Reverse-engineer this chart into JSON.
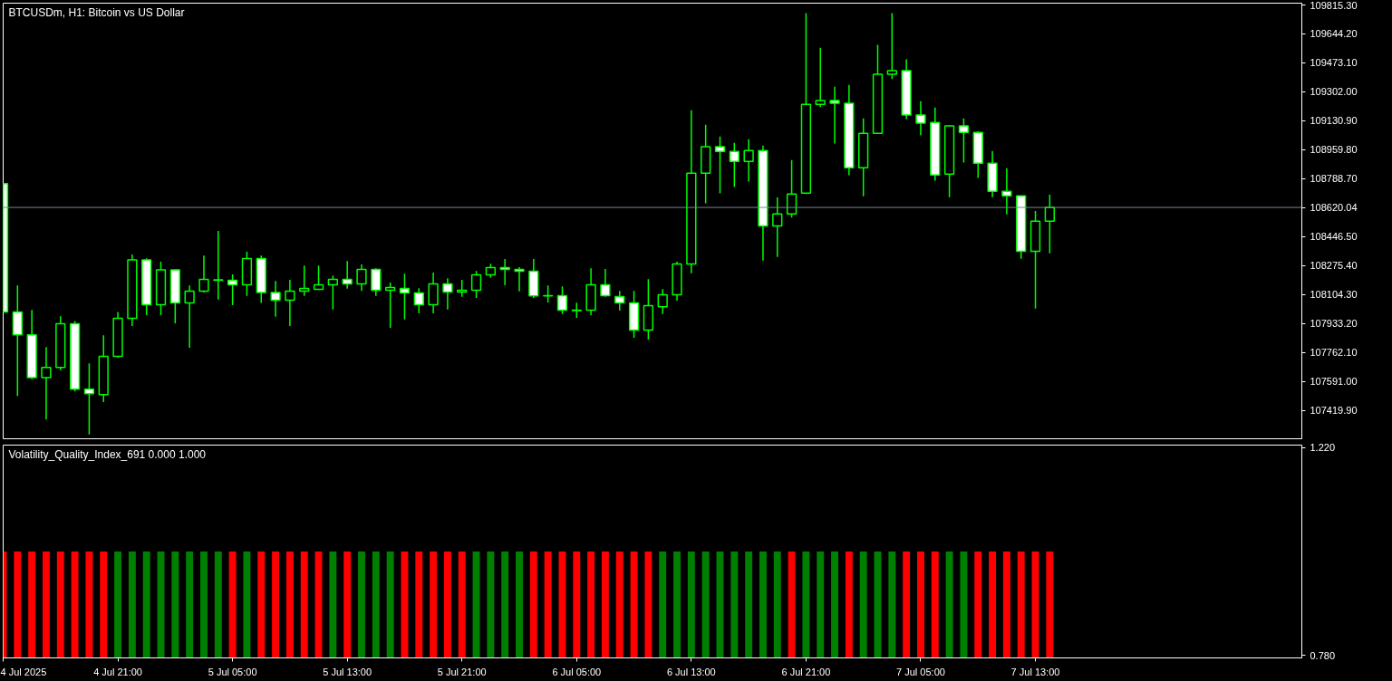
{
  "chart_data": [
    {
      "type": "candlestick",
      "title": "BTCUSDm, H1:  Bitcoin vs US Dollar",
      "x": [
        "2025-07-04T13:00",
        "2025-07-04T14:00",
        "2025-07-04T15:00",
        "2025-07-04T16:00",
        "2025-07-04T17:00",
        "2025-07-04T18:00",
        "2025-07-04T19:00",
        "2025-07-04T20:00",
        "2025-07-04T21:00",
        "2025-07-04T22:00",
        "2025-07-04T23:00",
        "2025-07-05T00:00",
        "2025-07-05T01:00",
        "2025-07-05T02:00",
        "2025-07-05T03:00",
        "2025-07-05T04:00",
        "2025-07-05T05:00",
        "2025-07-05T06:00",
        "2025-07-05T07:00",
        "2025-07-05T08:00",
        "2025-07-05T09:00",
        "2025-07-05T10:00",
        "2025-07-05T11:00",
        "2025-07-05T12:00",
        "2025-07-05T13:00",
        "2025-07-05T14:00",
        "2025-07-05T15:00",
        "2025-07-05T16:00",
        "2025-07-05T17:00",
        "2025-07-05T18:00",
        "2025-07-05T19:00",
        "2025-07-05T20:00",
        "2025-07-05T21:00",
        "2025-07-05T22:00",
        "2025-07-05T23:00",
        "2025-07-06T00:00",
        "2025-07-06T01:00",
        "2025-07-06T02:00",
        "2025-07-06T03:00",
        "2025-07-06T04:00",
        "2025-07-06T05:00",
        "2025-07-06T06:00",
        "2025-07-06T07:00",
        "2025-07-06T08:00",
        "2025-07-06T09:00",
        "2025-07-06T10:00",
        "2025-07-06T11:00",
        "2025-07-06T12:00",
        "2025-07-06T13:00",
        "2025-07-06T14:00",
        "2025-07-06T15:00",
        "2025-07-06T16:00",
        "2025-07-06T17:00",
        "2025-07-06T18:00",
        "2025-07-06T19:00",
        "2025-07-06T20:00",
        "2025-07-06T21:00",
        "2025-07-06T22:00",
        "2025-07-06T23:00",
        "2025-07-07T00:00",
        "2025-07-07T01:00",
        "2025-07-07T02:00",
        "2025-07-07T03:00",
        "2025-07-07T04:00",
        "2025-07-07T05:00",
        "2025-07-07T06:00",
        "2025-07-07T07:00",
        "2025-07-07T08:00",
        "2025-07-07T09:00",
        "2025-07-07T10:00",
        "2025-07-07T11:00",
        "2025-07-07T12:00",
        "2025-07-07T13:00",
        "2025-07-07T14:00"
      ],
      "ohlc": [
        [
          108761,
          108761,
          108002,
          108002
        ],
        [
          108002,
          108159,
          107507,
          107868
        ],
        [
          107868,
          108015,
          107606,
          107615
        ],
        [
          107615,
          107795,
          107368,
          107675
        ],
        [
          107675,
          107977,
          107659,
          107933
        ],
        [
          107933,
          107949,
          107534,
          107547
        ],
        [
          107547,
          107699,
          107279,
          107520
        ],
        [
          107515,
          107865,
          107470,
          107740
        ],
        [
          107740,
          108002,
          107734,
          107965
        ],
        [
          107965,
          108342,
          107920,
          108310
        ],
        [
          108310,
          108320,
          107984,
          108045
        ],
        [
          108045,
          108299,
          107984,
          108251
        ],
        [
          108251,
          108251,
          107936,
          108056
        ],
        [
          108056,
          108159,
          107792,
          108126
        ],
        [
          108126,
          108336,
          108118,
          108195
        ],
        [
          108193,
          108481,
          108076,
          108190
        ],
        [
          108190,
          108224,
          108043,
          108163
        ],
        [
          108163,
          108358,
          108097,
          108318
        ],
        [
          108318,
          108336,
          108056,
          108118
        ],
        [
          108118,
          108186,
          107974,
          108072
        ],
        [
          108072,
          108192,
          107920,
          108126
        ],
        [
          108126,
          108277,
          108097,
          108142
        ],
        [
          108136,
          108277,
          108136,
          108163
        ],
        [
          108163,
          108218,
          108017,
          108195
        ],
        [
          108195,
          108304,
          108140,
          108168
        ],
        [
          108168,
          108283,
          108127,
          108254
        ],
        [
          108254,
          108261,
          108097,
          108131
        ],
        [
          108131,
          108176,
          107909,
          108147
        ],
        [
          108142,
          108229,
          107958,
          108115
        ],
        [
          108115,
          108143,
          107995,
          108045
        ],
        [
          108045,
          108235,
          107995,
          108168
        ],
        [
          108168,
          108202,
          108017,
          108120
        ],
        [
          108120,
          108192,
          108092,
          108131
        ],
        [
          108131,
          108245,
          108086,
          108222
        ],
        [
          108222,
          108288,
          108204,
          108265
        ],
        [
          108265,
          108315,
          108161,
          108254
        ],
        [
          108254,
          108267,
          108124,
          108243
        ],
        [
          108243,
          108315,
          108086,
          108097
        ],
        [
          108099,
          108159,
          108059,
          108097
        ],
        [
          108099,
          108154,
          107990,
          108013
        ],
        [
          108013,
          108058,
          107968,
          108011
        ],
        [
          108013,
          108261,
          107984,
          108163
        ],
        [
          108163,
          108256,
          108092,
          108099
        ],
        [
          108093,
          108127,
          108011,
          108056
        ],
        [
          108056,
          108127,
          107850,
          107895
        ],
        [
          107895,
          108197,
          107840,
          108040
        ],
        [
          108034,
          108138,
          107990,
          108104
        ],
        [
          108104,
          108299,
          108070,
          108286
        ],
        [
          108286,
          109194,
          108231,
          108822
        ],
        [
          108822,
          109108,
          108644,
          108978
        ],
        [
          108978,
          109038,
          108703,
          108951
        ],
        [
          108951,
          109001,
          108740,
          108892
        ],
        [
          108892,
          109022,
          108772,
          108956
        ],
        [
          108956,
          108985,
          108306,
          108511
        ],
        [
          108511,
          108679,
          108327,
          108581
        ],
        [
          108581,
          108899,
          108560,
          108699
        ],
        [
          108704,
          109767,
          108699,
          109229
        ],
        [
          109229,
          109563,
          109212,
          109251
        ],
        [
          109251,
          109333,
          108997,
          109235
        ],
        [
          109235,
          109344,
          108810,
          108854
        ],
        [
          108854,
          109146,
          108686,
          109058
        ],
        [
          109058,
          109580,
          109058,
          109406
        ],
        [
          109406,
          109767,
          109378,
          109428
        ],
        [
          109428,
          109494,
          109142,
          109165
        ],
        [
          109165,
          109247,
          109045,
          109117
        ],
        [
          109122,
          109210,
          108778,
          108811
        ],
        [
          108817,
          109106,
          108681,
          109101
        ],
        [
          109101,
          109146,
          108885,
          109063
        ],
        [
          109063,
          109070,
          108794,
          108881
        ],
        [
          108881,
          108953,
          108681,
          108715
        ],
        [
          108715,
          108851,
          108579,
          108688
        ],
        [
          108688,
          108688,
          108317,
          108361
        ],
        [
          108361,
          108599,
          108022,
          108538
        ],
        [
          108538,
          108695,
          108349,
          108620.04
        ]
      ],
      "xlim": [
        "2025-07-04T13:00",
        "2025-07-08T07:35"
      ],
      "ylim": [
        107254,
        109826
      ],
      "yticks": [
        {
          "value": 107419.9,
          "label": "107419.90"
        },
        {
          "value": 107591.0,
          "label": "107591.00"
        },
        {
          "value": 107762.1,
          "label": "107762.10"
        },
        {
          "value": 107933.2,
          "label": "107933.20"
        },
        {
          "value": 108104.3,
          "label": "108104.30"
        },
        {
          "value": 108275.4,
          "label": "108275.40"
        },
        {
          "value": 108446.5,
          "label": "108446.50"
        },
        {
          "value": 108788.7,
          "label": "108788.70"
        },
        {
          "value": 108959.8,
          "label": "108959.80"
        },
        {
          "value": 109130.9,
          "label": "109130.90"
        },
        {
          "value": 109302.0,
          "label": "109302.00"
        },
        {
          "value": 109473.1,
          "label": "109473.10"
        },
        {
          "value": 109644.2,
          "label": "109644.20"
        },
        {
          "value": 109815.3,
          "label": "109815.30"
        }
      ],
      "ref_lines": [
        {
          "axis": "y",
          "value": 108620.04,
          "label": "108620.04",
          "color": "#778899"
        }
      ],
      "tick_labels": "y"
    },
    {
      "type": "bar",
      "title": "Volatility_Quality_Index_691 0.000 1.000",
      "x": [
        "2025-07-04T13:00",
        "2025-07-04T14:00",
        "2025-07-04T15:00",
        "2025-07-04T16:00",
        "2025-07-04T17:00",
        "2025-07-04T18:00",
        "2025-07-04T19:00",
        "2025-07-04T20:00",
        "2025-07-04T21:00",
        "2025-07-04T22:00",
        "2025-07-04T23:00",
        "2025-07-05T00:00",
        "2025-07-05T01:00",
        "2025-07-05T02:00",
        "2025-07-05T03:00",
        "2025-07-05T04:00",
        "2025-07-05T05:00",
        "2025-07-05T06:00",
        "2025-07-05T07:00",
        "2025-07-05T08:00",
        "2025-07-05T09:00",
        "2025-07-05T10:00",
        "2025-07-05T11:00",
        "2025-07-05T12:00",
        "2025-07-05T13:00",
        "2025-07-05T14:00",
        "2025-07-05T15:00",
        "2025-07-05T16:00",
        "2025-07-05T17:00",
        "2025-07-05T18:00",
        "2025-07-05T19:00",
        "2025-07-05T20:00",
        "2025-07-05T21:00",
        "2025-07-05T22:00",
        "2025-07-05T23:00",
        "2025-07-06T00:00",
        "2025-07-06T01:00",
        "2025-07-06T02:00",
        "2025-07-06T03:00",
        "2025-07-06T04:00",
        "2025-07-06T05:00",
        "2025-07-06T06:00",
        "2025-07-06T07:00",
        "2025-07-06T08:00",
        "2025-07-06T09:00",
        "2025-07-06T10:00",
        "2025-07-06T11:00",
        "2025-07-06T12:00",
        "2025-07-06T13:00",
        "2025-07-06T14:00",
        "2025-07-06T15:00",
        "2025-07-06T16:00",
        "2025-07-06T17:00",
        "2025-07-06T18:00",
        "2025-07-06T19:00",
        "2025-07-06T20:00",
        "2025-07-06T21:00",
        "2025-07-06T22:00",
        "2025-07-06T23:00",
        "2025-07-07T00:00",
        "2025-07-07T01:00",
        "2025-07-07T02:00",
        "2025-07-07T03:00",
        "2025-07-07T04:00",
        "2025-07-07T05:00",
        "2025-07-07T06:00",
        "2025-07-07T07:00",
        "2025-07-07T08:00",
        "2025-07-07T09:00",
        "2025-07-07T10:00",
        "2025-07-07T11:00",
        "2025-07-07T12:00",
        "2025-07-07T13:00",
        "2025-07-07T14:00"
      ],
      "values": [
        1,
        1,
        1,
        1,
        1,
        1,
        1,
        1,
        1,
        1,
        1,
        1,
        1,
        1,
        1,
        1,
        1,
        1,
        1,
        1,
        1,
        1,
        1,
        1,
        1,
        1,
        1,
        1,
        1,
        1,
        1,
        1,
        1,
        1,
        1,
        1,
        1,
        1,
        1,
        1,
        1,
        1,
        1,
        1,
        1,
        1,
        1,
        1,
        1,
        1,
        1,
        1,
        1,
        1,
        1,
        1,
        1,
        1,
        1,
        1,
        1,
        1,
        1,
        1,
        1,
        1,
        1,
        1,
        1,
        1,
        1,
        1,
        1,
        1
      ],
      "colors": [
        "#ff0000",
        "#ff0000",
        "#ff0000",
        "#ff0000",
        "#ff0000",
        "#ff0000",
        "#ff0000",
        "#ff0000",
        "#008000",
        "#008000",
        "#008000",
        "#008000",
        "#008000",
        "#008000",
        "#008000",
        "#008000",
        "#ff0000",
        "#008000",
        "#ff0000",
        "#ff0000",
        "#ff0000",
        "#ff0000",
        "#ff0000",
        "#008000",
        "#ff0000",
        "#008000",
        "#008000",
        "#008000",
        "#ff0000",
        "#ff0000",
        "#ff0000",
        "#ff0000",
        "#ff0000",
        "#008000",
        "#008000",
        "#008000",
        "#008000",
        "#ff0000",
        "#ff0000",
        "#ff0000",
        "#ff0000",
        "#ff0000",
        "#ff0000",
        "#ff0000",
        "#ff0000",
        "#ff0000",
        "#008000",
        "#008000",
        "#008000",
        "#008000",
        "#008000",
        "#008000",
        "#008000",
        "#008000",
        "#008000",
        "#ff0000",
        "#008000",
        "#008000",
        "#008000",
        "#ff0000",
        "#008000",
        "#008000",
        "#008000",
        "#ff0000",
        "#ff0000",
        "#ff0000",
        "#008000",
        "#008000",
        "#ff0000",
        "#ff0000",
        "#ff0000",
        "#ff0000",
        "#ff0000",
        "#ff0000"
      ],
      "xlim": [
        "2025-07-04T13:00",
        "2025-07-08T07:35"
      ],
      "xticks": [
        {
          "value": "2025-07-04T13:00",
          "label": "4 Jul 2025"
        },
        {
          "value": "2025-07-04T21:00",
          "label": "4 Jul 21:00"
        },
        {
          "value": "2025-07-05T05:00",
          "label": "5 Jul 05:00"
        },
        {
          "value": "2025-07-05T13:00",
          "label": "5 Jul 13:00"
        },
        {
          "value": "2025-07-05T21:00",
          "label": "5 Jul 21:00"
        },
        {
          "value": "2025-07-06T05:00",
          "label": "6 Jul 05:00"
        },
        {
          "value": "2025-07-06T13:00",
          "label": "6 Jul 13:00"
        },
        {
          "value": "2025-07-06T21:00",
          "label": "6 Jul 21:00"
        },
        {
          "value": "2025-07-07T05:00",
          "label": "7 Jul 05:00"
        },
        {
          "value": "2025-07-07T13:00",
          "label": "7 Jul 13:00"
        }
      ],
      "ylim": [
        0.775,
        1.225
      ],
      "yticks": [
        {
          "value": 1.22,
          "label": "1.220"
        },
        {
          "value": 0.78,
          "label": "0.780"
        }
      ]
    }
  ]
}
